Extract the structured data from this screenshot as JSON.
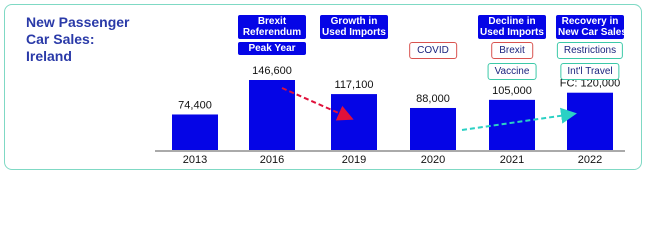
{
  "chart_data": {
    "type": "bar",
    "title": [
      "New Passenger",
      "Car Sales:",
      "Ireland"
    ],
    "categories": [
      "2013",
      "2016",
      "2019",
      "2020",
      "2021",
      "2022"
    ],
    "values": [
      74400,
      146600,
      117100,
      88000,
      105000,
      120000
    ],
    "value_labels": [
      "74,400",
      "146,600",
      "117,100",
      "88,000",
      "105,000",
      "FC: 120,000"
    ],
    "color": "#0505e6",
    "annotations": [
      [],
      [
        {
          "lines": [
            "Brexit",
            "Referendum"
          ],
          "style": "filled"
        },
        {
          "lines": [
            "Peak Year"
          ],
          "style": "filled"
        }
      ],
      [
        {
          "lines": [
            "Growth in",
            "Used Imports"
          ],
          "style": "filled"
        }
      ],
      [
        {
          "lines": [
            "COVID"
          ],
          "style": "red"
        }
      ],
      [
        {
          "lines": [
            "Decline in",
            "Used Imports"
          ],
          "style": "filled"
        },
        {
          "lines": [
            "Brexit"
          ],
          "style": "red"
        },
        {
          "lines": [
            "Vaccine"
          ],
          "style": "teal"
        }
      ],
      [
        {
          "lines": [
            "Recovery in",
            "New Car Sales"
          ],
          "style": "filled"
        },
        {
          "lines": [
            "Restrictions"
          ],
          "style": "teal"
        },
        {
          "lines": [
            "Int'l Travel"
          ],
          "style": "teal"
        }
      ]
    ]
  }
}
